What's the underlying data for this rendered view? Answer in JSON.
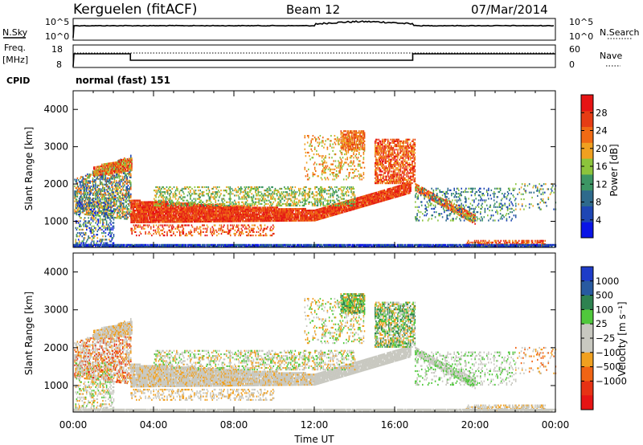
{
  "header": {
    "station": "Kerguelen (fitACF)",
    "beam": "Beam 12",
    "date": "07/Mar/2014"
  },
  "side_labels": {
    "nsky": "N.Sky",
    "freq": "Freq.",
    "mhz": "[MHz]",
    "cpid": "CPID",
    "nsearch": "N.Search",
    "nave": "Nave",
    "nsky_ticks": [
      "10^5",
      "10^0"
    ],
    "freq_ticks": [
      "18",
      "8"
    ],
    "nave_ticks": [
      "60",
      "0"
    ]
  },
  "cpid_text": "normal (fast) 151",
  "colors": {
    "power_scale": [
      "#0a14e6",
      "#1e46b4",
      "#2e6a8c",
      "#3c9664",
      "#8cc43c",
      "#f0a020",
      "#f06a14",
      "#e63c14",
      "#e61414"
    ],
    "velocity_scale": [
      "#1e3cc8",
      "#285aa0",
      "#2e8250",
      "#50c83c",
      "#c8c8c0",
      "#c8c8c0",
      "#f0a020",
      "#f06414",
      "#e63214",
      "#e61414"
    ]
  },
  "chart_data": [
    {
      "type": "heatmap",
      "panel": "power",
      "ylabel": "Slant Range [km]",
      "y_ticks": [
        1000,
        2000,
        3000,
        4000
      ],
      "ylim": [
        300,
        4500
      ],
      "xlim": [
        0,
        24
      ],
      "colorbar_label": "Power [dB]",
      "colorbar_ticks": [
        4,
        8,
        12,
        16,
        20,
        24,
        28
      ],
      "colorbar_range": [
        0,
        32
      ]
    },
    {
      "type": "heatmap",
      "panel": "velocity",
      "ylabel": "Slant Range [km]",
      "xlabel": "Time UT",
      "y_ticks": [
        1000,
        2000,
        3000,
        4000
      ],
      "ylim": [
        300,
        4500
      ],
      "xlim": [
        0,
        24
      ],
      "x_ticks": [
        "00:00",
        "04:00",
        "08:00",
        "12:00",
        "16:00",
        "20:00",
        "00:00"
      ],
      "colorbar_label": "Velocity [m s⁻¹]",
      "colorbar_ticks": [
        "1000",
        "500",
        "100",
        "25",
        "−25",
        "−100",
        "−500",
        "−1000"
      ]
    }
  ]
}
